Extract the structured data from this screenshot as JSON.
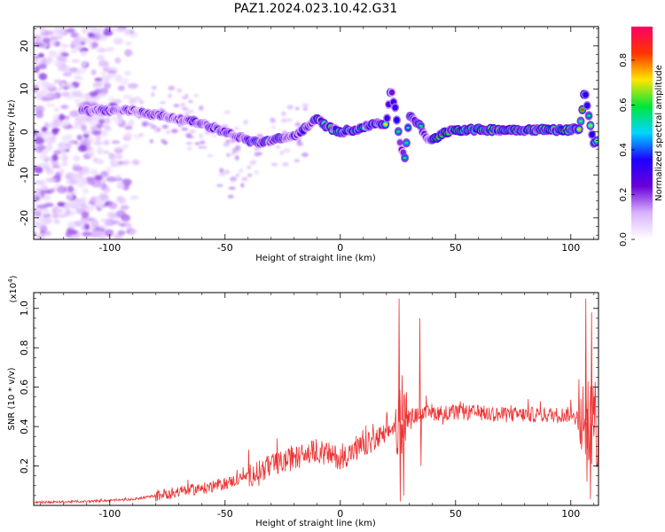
{
  "title": "PAZ1.2024.023.10.42.G31",
  "chart_data": [
    {
      "type": "heatmap",
      "xlabel": "Height of straight line (km)",
      "ylabel": "Frequency (Hz)",
      "xlim": [
        -133,
        112
      ],
      "ylim": [
        -25,
        24.5
      ],
      "xticks": [
        -100,
        -50,
        0,
        50,
        100
      ],
      "yticks": [
        -20,
        -10,
        0,
        10,
        20
      ],
      "colorbar": {
        "label": "Normalized spectral amplitude",
        "range": [
          0,
          0.95
        ],
        "ticks": [
          "0.0",
          "0.2",
          "0.4",
          "0.6",
          "0.8"
        ],
        "colors": [
          "#ffffff",
          "#d9b3ff",
          "#6a00d8",
          "#1e00ff",
          "#00d6ff",
          "#00e63c",
          "#ffe600",
          "#ff3300",
          "#ff0066"
        ]
      },
      "ridge": {
        "x": [
          -112,
          -100,
          -90,
          -80,
          -70,
          -60,
          -50,
          -40,
          -35,
          -30,
          -25,
          -20,
          -15,
          -10,
          -5,
          0,
          5,
          10,
          15,
          20,
          22,
          24,
          26,
          28,
          30,
          32,
          35,
          38,
          40,
          45,
          50,
          60,
          70,
          80,
          90,
          100,
          104,
          106,
          108,
          110,
          112
        ],
        "y": [
          5,
          5,
          5,
          4,
          3,
          2,
          0,
          -2,
          -2.5,
          -2,
          -1.5,
          -1,
          1,
          3,
          1,
          0,
          0.5,
          1,
          2,
          2,
          10,
          5,
          -3,
          -6,
          4,
          3,
          1,
          -2,
          -2,
          0,
          0.5,
          0.5,
          0.5,
          0.5,
          0.5,
          0.5,
          1,
          10,
          3,
          -3,
          -2
        ]
      }
    },
    {
      "type": "line",
      "xlabel": "Height of straight line (km)",
      "ylabel": "SNR (10 * v/v)",
      "multiplier": "(x10",
      "multiplier_exp": "4",
      "xlim": [
        -133,
        112
      ],
      "ylim": [
        0.0,
        1.08
      ],
      "xticks": [
        -100,
        -50,
        0,
        50,
        100
      ],
      "yticks": [
        "0.2",
        "0.4",
        "0.6",
        "0.8",
        "1.0"
      ],
      "color": "#ee3333",
      "trend": {
        "x": [
          -133,
          -110,
          -90,
          -80,
          -70,
          -60,
          -50,
          -40,
          -30,
          -20,
          -10,
          0,
          10,
          20,
          25,
          30,
          40,
          50,
          60,
          70,
          80,
          90,
          100,
          112
        ],
        "y": [
          0.015,
          0.02,
          0.03,
          0.05,
          0.07,
          0.085,
          0.11,
          0.15,
          0.2,
          0.24,
          0.28,
          0.24,
          0.3,
          0.36,
          0.42,
          0.45,
          0.47,
          0.47,
          0.47,
          0.46,
          0.46,
          0.46,
          0.46,
          0.4
        ]
      },
      "spikes": [
        {
          "x": 25.5,
          "y": 1.05
        },
        {
          "x": 26.0,
          "y": 0.02
        },
        {
          "x": 26.8,
          "y": 0.66
        },
        {
          "x": 27.5,
          "y": 0.05
        },
        {
          "x": 28.5,
          "y": 0.52
        },
        {
          "x": 34.5,
          "y": 0.95
        },
        {
          "x": 35.0,
          "y": 0.2
        },
        {
          "x": 106.5,
          "y": 1.05
        },
        {
          "x": 107.0,
          "y": 0.12
        },
        {
          "x": 108.5,
          "y": 0.03
        },
        {
          "x": 109.0,
          "y": 0.98
        },
        {
          "x": 110.0,
          "y": 0.35
        }
      ]
    }
  ]
}
